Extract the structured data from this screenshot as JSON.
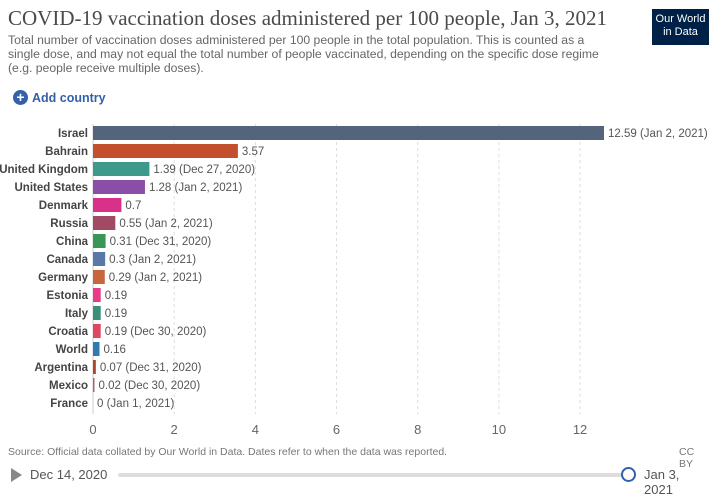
{
  "header": {
    "title": "COVID-19 vaccination doses administered per 100 people, Jan 3, 2021",
    "subtitle": "Total number of vaccination doses administered per 100 people in the total population. This is counted as a single dose, and may not equal the total number of people vaccinated, depending on the specific dose regime (e.g. people receive multiple doses).",
    "logo_line1": "Our World",
    "logo_line2": "in Data"
  },
  "controls": {
    "add_country": "Add country"
  },
  "footer": {
    "source": "Source: Official data collated by Our World in Data. Dates refer to when the data was reported.",
    "license": "CC BY"
  },
  "timeline": {
    "start": "Dec 14, 2020",
    "end": "Jan 3, 2021",
    "position": 1.0
  },
  "chart_data": {
    "type": "bar",
    "orientation": "horizontal",
    "title": "COVID-19 vaccination doses administered per 100 people, Jan 3, 2021",
    "xlim": [
      0,
      12.59
    ],
    "xticks": [
      0,
      2,
      4,
      6,
      8,
      10,
      12
    ],
    "grid": "vertical dashed",
    "categories": [
      "Israel",
      "Bahrain",
      "United Kingdom",
      "United States",
      "Denmark",
      "Russia",
      "China",
      "Canada",
      "Germany",
      "Estonia",
      "Italy",
      "Croatia",
      "World",
      "Argentina",
      "Mexico",
      "France"
    ],
    "values": [
      12.59,
      3.57,
      1.39,
      1.28,
      0.7,
      0.55,
      0.31,
      0.3,
      0.29,
      0.19,
      0.19,
      0.19,
      0.16,
      0.07,
      0.02,
      0
    ],
    "labels": [
      "12.59 (Jan 2, 2021)",
      "3.57",
      "1.39 (Dec 27, 2020)",
      "1.28 (Jan 2, 2021)",
      "0.7",
      "0.55 (Jan 2, 2021)",
      "0.31 (Dec 31, 2020)",
      "0.3 (Jan 2, 2021)",
      "0.29 (Jan 2, 2021)",
      "0.19",
      "0.19",
      "0.19 (Dec 30, 2020)",
      "0.16",
      "0.07 (Dec 31, 2020)",
      "0.02 (Dec 30, 2020)",
      "0 (Jan 1, 2021)"
    ],
    "colors": [
      "#54647a",
      "#c2502e",
      "#3d9a8b",
      "#8b4ea6",
      "#d9308a",
      "#a04a63",
      "#399655",
      "#5b77a8",
      "#c8653c",
      "#e83a8a",
      "#3a8f7a",
      "#e04660",
      "#2f7bb0",
      "#b0442e",
      "#b06070",
      "#8a8a8a"
    ]
  }
}
